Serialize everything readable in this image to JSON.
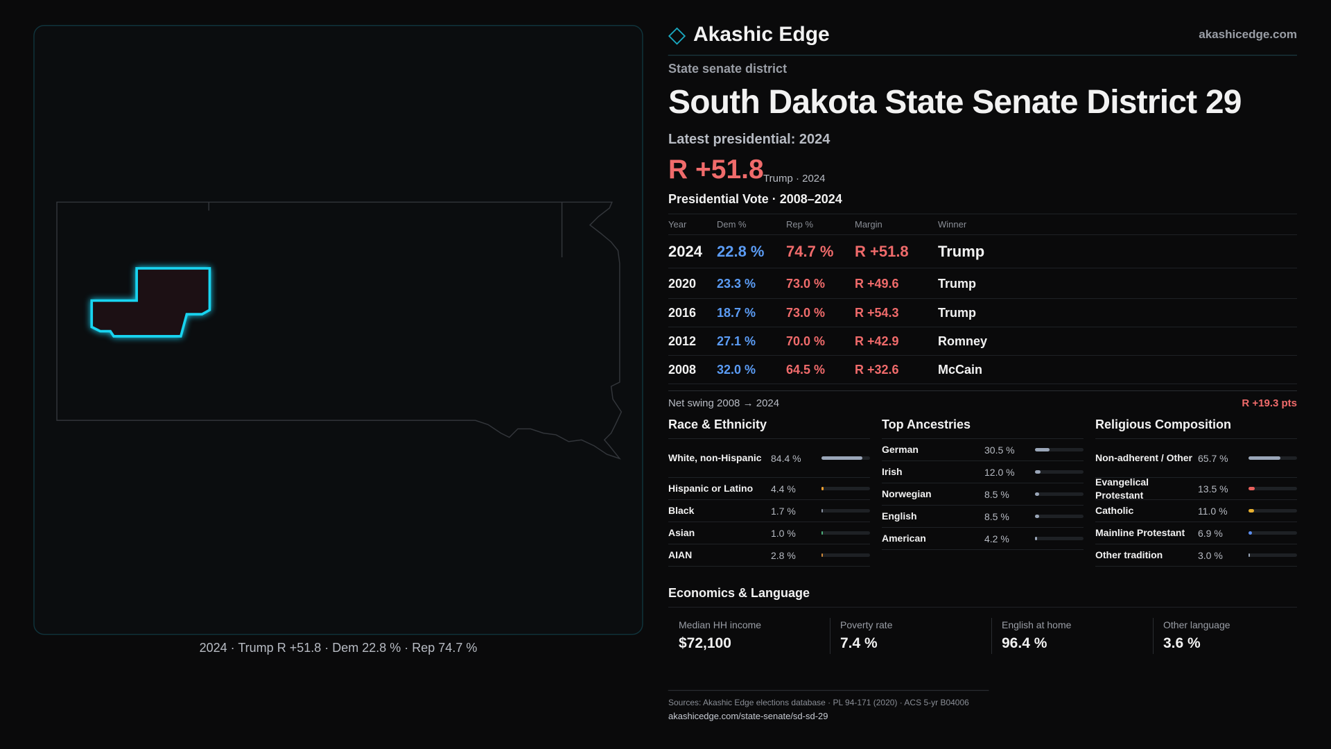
{
  "header": {
    "brand": "Akashic Edge",
    "site": "akashicedge.com"
  },
  "district": {
    "kind": "State senate district",
    "title": "South Dakota State Senate District 29",
    "latest_label": "Latest presidential: 2024",
    "margin": "R +51.8",
    "margin_note": "Trump · 2024"
  },
  "map": {
    "caption": "2024 · Trump R +51.8 · Dem 22.8 % · Rep 74.7 %"
  },
  "vote_table": {
    "title": "Presidential Vote · 2008–2024",
    "columns": [
      "Year",
      "Dem %",
      "Rep %",
      "Margin",
      "Winner"
    ],
    "rows": [
      [
        "2024",
        "22.8 %",
        "74.7 %",
        "R +51.8",
        "Trump"
      ],
      [
        "2020",
        "23.3 %",
        "73.0 %",
        "R +49.6",
        "Trump"
      ],
      [
        "2016",
        "18.7 %",
        "73.0 %",
        "R +54.3",
        "Trump"
      ],
      [
        "2012",
        "27.1 %",
        "70.0 %",
        "R +42.9",
        "Romney"
      ],
      [
        "2008",
        "32.0 %",
        "64.5 %",
        "R +32.6",
        "McCain"
      ]
    ]
  },
  "swing": {
    "label": "Net swing 2008 → 2024",
    "value": "R +19.3 pts"
  },
  "race": {
    "title": "Race & Ethnicity",
    "rows": [
      {
        "name": "White, non-Hispanic",
        "value": 84.4,
        "label": "84.4 %",
        "color": "#9aa6b8"
      },
      {
        "name": "Hispanic or Latino",
        "value": 4.4,
        "label": "4.4 %",
        "color": "#f0a030"
      },
      {
        "name": "Black",
        "value": 1.7,
        "label": "1.7 %",
        "color": "#8a93a3"
      },
      {
        "name": "Asian",
        "value": 1.0,
        "label": "1.0 %",
        "color": "#4caf7a"
      },
      {
        "name": "AIAN",
        "value": 2.8,
        "label": "2.8 %",
        "color": "#d08a3a"
      }
    ]
  },
  "ancestry": {
    "title": "Top Ancestries",
    "rows": [
      {
        "name": "German",
        "value": 30.5,
        "label": "30.5 %",
        "color": "#9aa6b8"
      },
      {
        "name": "Irish",
        "value": 12.0,
        "label": "12.0 %",
        "color": "#9aa6b8"
      },
      {
        "name": "Norwegian",
        "value": 8.5,
        "label": "8.5 %",
        "color": "#9aa6b8"
      },
      {
        "name": "English",
        "value": 8.5,
        "label": "8.5 %",
        "color": "#9aa6b8"
      },
      {
        "name": "American",
        "value": 4.2,
        "label": "4.2 %",
        "color": "#9aa6b8"
      }
    ]
  },
  "religion": {
    "title": "Religious Composition",
    "rows": [
      {
        "name": "Non-adherent / Other",
        "value": 65.7,
        "label": "65.7 %",
        "color": "#9aa6b8"
      },
      {
        "name": "Evangelical Protestant",
        "value": 13.5,
        "label": "13.5 %",
        "color": "#e8605c"
      },
      {
        "name": "Catholic",
        "value": 11.0,
        "label": "11.0 %",
        "color": "#e8b030"
      },
      {
        "name": "Mainline Protestant",
        "value": 6.9,
        "label": "6.9 %",
        "color": "#5b8def"
      },
      {
        "name": "Other tradition",
        "value": 3.0,
        "label": "3.0 %",
        "color": "#9aa6b8"
      }
    ]
  },
  "economics": {
    "title": "Economics & Language",
    "items": [
      {
        "label": "Median HH income",
        "value": "$72,100"
      },
      {
        "label": "Poverty rate",
        "value": "7.4 %"
      },
      {
        "label": "English at home",
        "value": "96.4 %"
      },
      {
        "label": "Other language",
        "value": "3.6 %"
      }
    ]
  },
  "footer": {
    "sources": "Sources: Akashic Edge elections database · PL 94-171 (2020) · ACS 5-yr B04006",
    "url": "akashicedge.com/state-senate/sd-sd-29"
  }
}
